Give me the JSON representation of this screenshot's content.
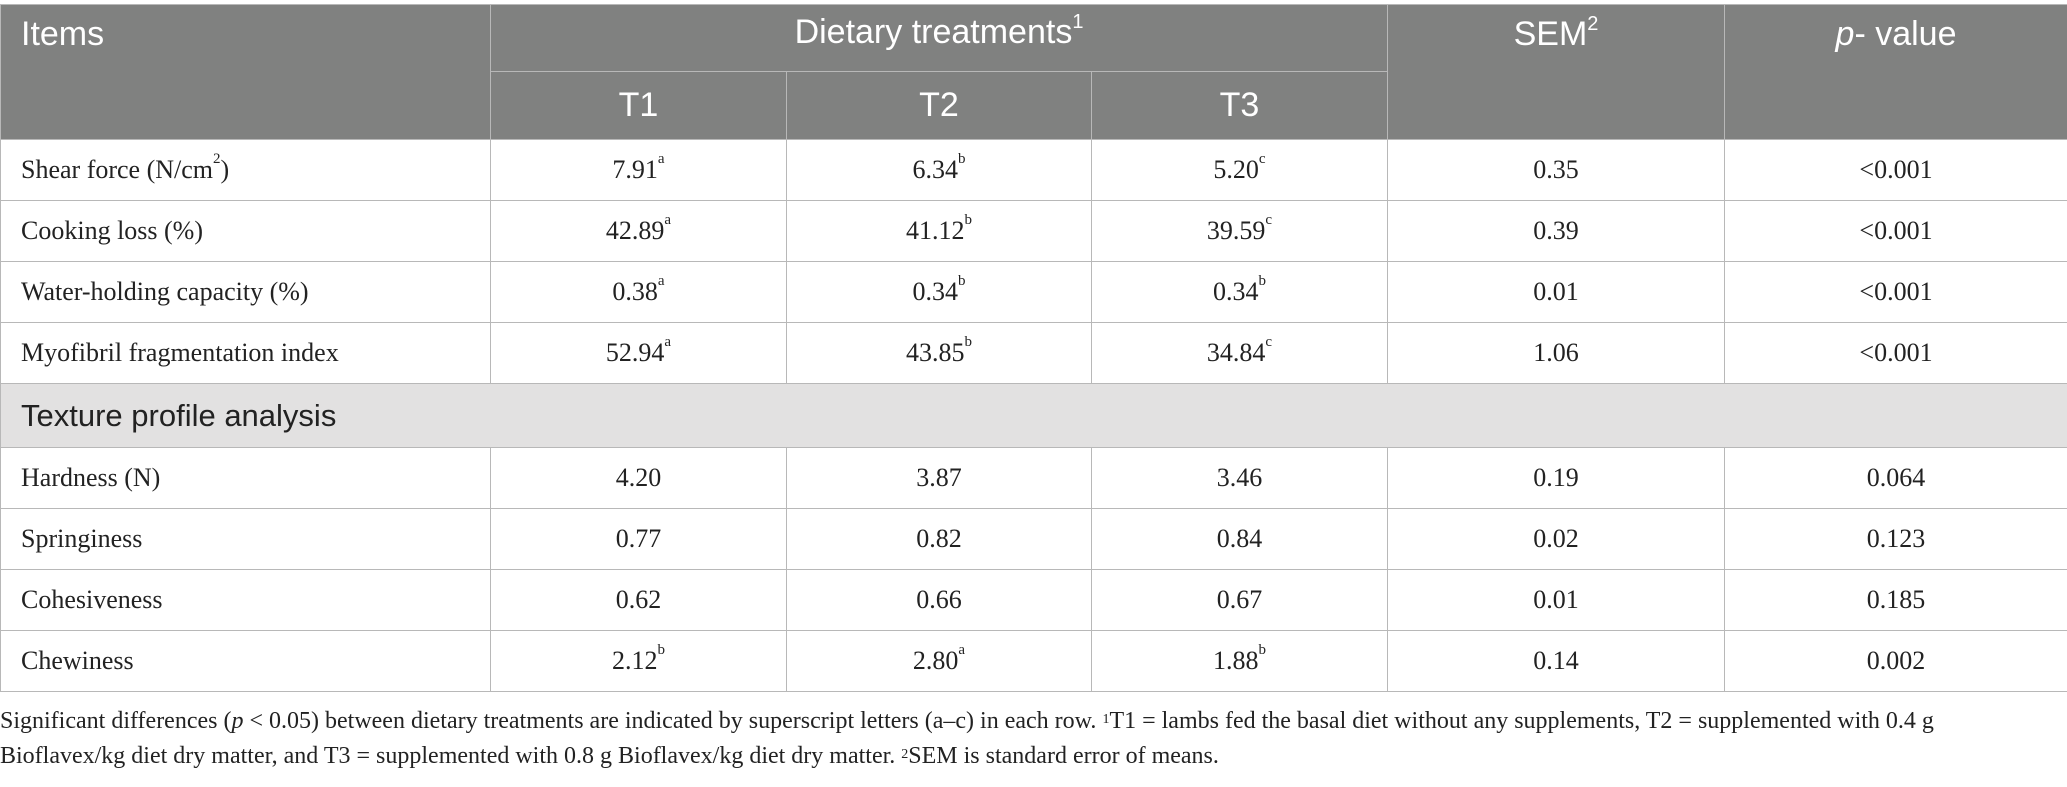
{
  "table": {
    "headers": {
      "items": "Items",
      "group": "Dietary treatments",
      "group_note": "1",
      "t1": "T1",
      "t2": "T2",
      "t3": "T3",
      "sem": "SEM",
      "sem_note": "2",
      "p_italic": "p",
      "p_rest": "- value"
    },
    "rows": [
      {
        "label": "Shear force (N/cm",
        "label_sup": "2",
        "label_end": ")",
        "t1": "7.91",
        "t1_sup": "a",
        "t2": "6.34",
        "t2_sup": "b",
        "t3": "5.20",
        "t3_sup": "c",
        "sem": "0.35",
        "p": "<0.001"
      },
      {
        "label": "Cooking loss (%)",
        "t1": "42.89",
        "t1_sup": "a",
        "t2": "41.12",
        "t2_sup": "b",
        "t3": "39.59",
        "t3_sup": "c",
        "sem": "0.39",
        "p": "<0.001"
      },
      {
        "label": "Water-holding capacity (%)",
        "t1": "0.38",
        "t1_sup": "a",
        "t2": "0.34",
        "t2_sup": "b",
        "t3": "0.34",
        "t3_sup": "b",
        "sem": "0.01",
        "p": "<0.001"
      },
      {
        "label": "Myofibril fragmentation index",
        "t1": "52.94",
        "t1_sup": "a",
        "t2": "43.85",
        "t2_sup": "b",
        "t3": "34.84",
        "t3_sup": "c",
        "sem": "1.06",
        "p": "<0.001"
      }
    ],
    "section_title": "Texture profile analysis",
    "texture_rows": [
      {
        "label": "Hardness (N)",
        "t1": "4.20",
        "t2": "3.87",
        "t3": "3.46",
        "sem": "0.19",
        "p": "0.064"
      },
      {
        "label": "Springiness",
        "t1": "0.77",
        "t2": "0.82",
        "t3": "0.84",
        "sem": "0.02",
        "p": "0.123"
      },
      {
        "label": "Cohesiveness",
        "t1": "0.62",
        "t2": "0.66",
        "t3": "0.67",
        "sem": "0.01",
        "p": "0.185"
      },
      {
        "label": "Chewiness",
        "t1": "2.12",
        "t1_sup": "b",
        "t2": "2.80",
        "t2_sup": "a",
        "t3": "1.88",
        "t3_sup": "b",
        "sem": "0.14",
        "p": "0.002"
      }
    ]
  },
  "footnote": {
    "part1": "Significant differences (",
    "p_italic": "p",
    "part2": " < 0.05) between dietary treatments are indicated by superscript letters (a–c) in each row. ",
    "note1_mark": "1",
    "note1_text": "T1 = lambs fed the basal diet without any supplements, T2 = supplemented with 0.4 g Bioflavex/kg diet dry matter, and T3 = supplemented with 0.8 g Bioflavex/kg diet dry matter. ",
    "note2_mark": "2",
    "note2_text": "SEM is standard error of means."
  }
}
